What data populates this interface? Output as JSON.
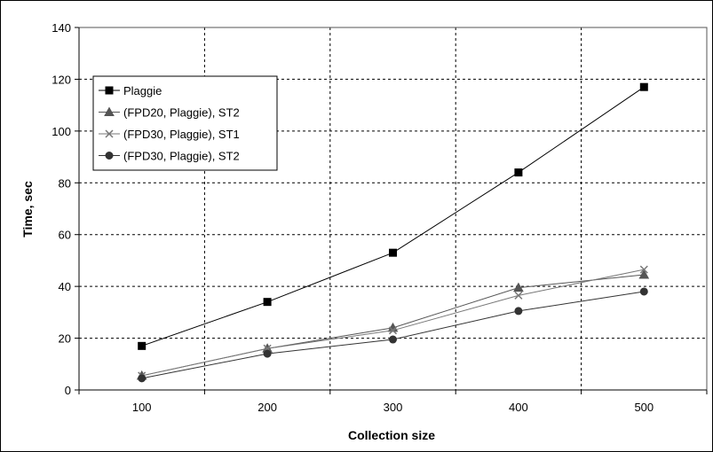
{
  "chart_data": {
    "type": "line",
    "title": "",
    "xlabel": "Collection size",
    "ylabel": "Time, sec",
    "categories": [
      "100",
      "200",
      "300",
      "400",
      "500"
    ],
    "ylim": [
      0,
      140
    ],
    "yticks": [
      "0",
      "20",
      "40",
      "60",
      "80",
      "100",
      "120",
      "140"
    ],
    "grid": "dashed",
    "legend_position": "top-left",
    "series": [
      {
        "name": "Plaggie",
        "marker": "square",
        "color": "#000000",
        "values": [
          17,
          34,
          53,
          84,
          117
        ]
      },
      {
        "name": "(FPD20, Plaggie), ST2",
        "marker": "triangle",
        "color": "#555555",
        "values": [
          5.5,
          16,
          24,
          39.5,
          44.5
        ]
      },
      {
        "name": "(FPD30, Plaggie), ST1",
        "marker": "x",
        "color": "#777777",
        "values": [
          5.5,
          16,
          23,
          36.5,
          46.5
        ]
      },
      {
        "name": "(FPD30, Plaggie), ST2",
        "marker": "circle",
        "color": "#333333",
        "values": [
          4.5,
          14,
          19.5,
          30.5,
          38
        ]
      }
    ]
  }
}
